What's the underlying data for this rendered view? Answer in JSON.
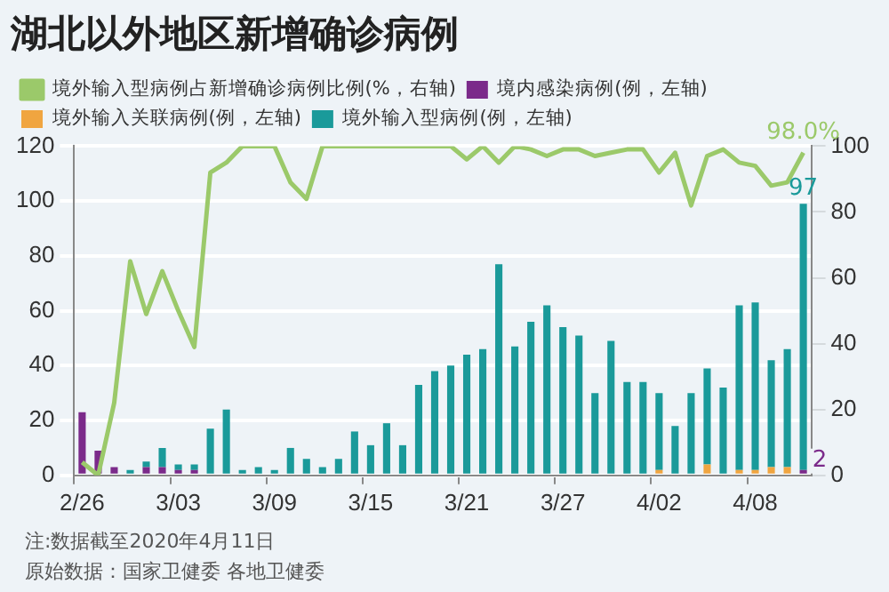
{
  "chart_data": {
    "type": "bar",
    "title": "湖北以外地区新增确诊病例",
    "categories": [
      "2/26",
      null,
      null,
      null,
      null,
      null,
      "3/03",
      null,
      null,
      null,
      null,
      null,
      "3/09",
      null,
      null,
      null,
      null,
      null,
      "3/15",
      null,
      null,
      null,
      null,
      null,
      "3/21",
      null,
      null,
      null,
      null,
      null,
      "3/27",
      null,
      null,
      null,
      null,
      null,
      "4/02",
      null,
      null,
      null,
      null,
      null,
      "4/08",
      null,
      null,
      null
    ],
    "stacked": true,
    "series": [
      {
        "name": "境内感染病例(例，左轴)",
        "color": "#7b2a8a",
        "values": [
          23,
          9,
          3,
          null,
          3,
          3,
          2,
          2,
          null,
          null,
          null,
          null,
          null,
          null,
          null,
          null,
          null,
          null,
          null,
          null,
          null,
          null,
          null,
          null,
          null,
          null,
          null,
          null,
          null,
          null,
          null,
          null,
          null,
          null,
          null,
          null,
          null,
          null,
          null,
          null,
          null,
          null,
          null,
          null,
          null,
          2
        ],
        "value_labels": [
          null,
          null,
          null,
          null,
          null,
          null,
          null,
          null,
          null,
          null,
          null,
          null,
          null,
          null,
          null,
          null,
          null,
          null,
          null,
          null,
          null,
          null,
          null,
          null,
          null,
          null,
          null,
          null,
          null,
          null,
          null,
          null,
          null,
          null,
          null,
          null,
          null,
          null,
          null,
          null,
          null,
          null,
          null,
          null,
          null,
          "2"
        ]
      },
      {
        "name": "境外输入关联病例(例，左轴)",
        "color": "#f0a540",
        "values": [
          null,
          null,
          null,
          null,
          null,
          null,
          null,
          null,
          null,
          null,
          null,
          null,
          null,
          null,
          null,
          null,
          null,
          null,
          null,
          null,
          null,
          null,
          null,
          null,
          null,
          null,
          null,
          null,
          null,
          null,
          null,
          null,
          null,
          null,
          null,
          null,
          2,
          null,
          null,
          4,
          null,
          2,
          2,
          3,
          3,
          null
        ]
      },
      {
        "name": "境外输入型病例(例，左轴)",
        "color": "#1a9a9a",
        "values": [
          null,
          null,
          null,
          2,
          2,
          7,
          2,
          2,
          17,
          24,
          2,
          3,
          2,
          10,
          6,
          3,
          6,
          16,
          11,
          19,
          11,
          33,
          38,
          40,
          44,
          46,
          77,
          47,
          56,
          62,
          54,
          51,
          30,
          49,
          34,
          34,
          28,
          18,
          30,
          35,
          32,
          60,
          61,
          39,
          43,
          97
        ],
        "value_labels": [
          null,
          null,
          null,
          null,
          null,
          null,
          null,
          null,
          null,
          null,
          null,
          null,
          null,
          null,
          null,
          null,
          null,
          null,
          null,
          null,
          null,
          null,
          null,
          null,
          null,
          null,
          null,
          null,
          null,
          null,
          null,
          null,
          null,
          null,
          null,
          null,
          null,
          null,
          null,
          null,
          null,
          null,
          null,
          null,
          null,
          "97"
        ]
      },
      {
        "name": "境外输入型病例占新增确诊病例比例(%，右轴)",
        "type": "line",
        "axis": "y2",
        "color": "#9bc96a",
        "values": [
          4,
          0,
          22,
          65,
          49,
          62,
          50,
          39,
          92,
          95,
          100,
          100,
          100,
          89,
          84,
          100,
          100,
          100,
          100,
          100,
          100,
          100,
          100,
          100,
          96,
          100,
          95,
          100,
          99,
          97,
          99,
          99,
          97,
          98,
          99,
          99,
          92,
          98,
          82,
          97,
          99,
          95,
          94,
          88,
          89,
          98.0
        ],
        "value_labels": [
          null,
          null,
          null,
          null,
          null,
          null,
          null,
          null,
          null,
          null,
          null,
          null,
          null,
          null,
          null,
          null,
          null,
          null,
          null,
          null,
          null,
          null,
          null,
          null,
          null,
          null,
          null,
          null,
          null,
          null,
          null,
          null,
          null,
          null,
          null,
          null,
          null,
          null,
          null,
          null,
          null,
          null,
          null,
          null,
          null,
          "98.0%"
        ]
      }
    ],
    "ylim": [
      0,
      120
    ],
    "yticks": [
      0,
      20,
      40,
      60,
      80,
      100,
      120
    ],
    "y2lim": [
      0,
      100
    ],
    "y2ticks": [
      0,
      20,
      40,
      60,
      80,
      100
    ],
    "grid": "y",
    "legend": "top left",
    "marker": "none",
    "annotations": [
      "注:数据截至2020年4月11日",
      "原始数据：国家卫健委 各地卫健委"
    ]
  }
}
